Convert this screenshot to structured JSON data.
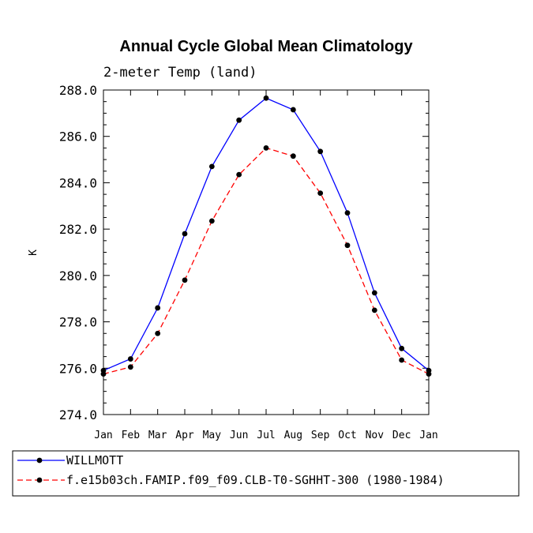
{
  "chart_data": {
    "type": "line",
    "title": "Annual Cycle Global Mean Climatology",
    "subtitle": "2-meter Temp (land)",
    "xlabel": "",
    "ylabel": "K",
    "categories": [
      "Jan",
      "Feb",
      "Mar",
      "Apr",
      "May",
      "Jun",
      "Jul",
      "Aug",
      "Sep",
      "Oct",
      "Nov",
      "Dec",
      "Jan"
    ],
    "ylim": [
      274.0,
      288.0
    ],
    "yticks": [
      "274.0",
      "276.0",
      "278.0",
      "280.0",
      "282.0",
      "284.0",
      "286.0",
      "288.0"
    ],
    "series": [
      {
        "name": "WILLMOTT",
        "color": "#0000ff",
        "dash": "solid",
        "values": [
          275.9,
          276.4,
          278.6,
          281.8,
          284.7,
          286.7,
          287.65,
          287.15,
          285.35,
          282.7,
          279.25,
          276.85,
          275.9
        ]
      },
      {
        "name": "f.e15b03ch.FAMIP.f09_f09.CLB-T0-SGHHT-300 (1980-1984)",
        "color": "#ff0000",
        "dash": "dashed",
        "values": [
          275.75,
          276.05,
          277.5,
          279.8,
          282.35,
          284.35,
          285.5,
          285.15,
          283.55,
          281.3,
          278.5,
          276.35,
          275.75
        ]
      }
    ],
    "legend_position": "bottom"
  }
}
